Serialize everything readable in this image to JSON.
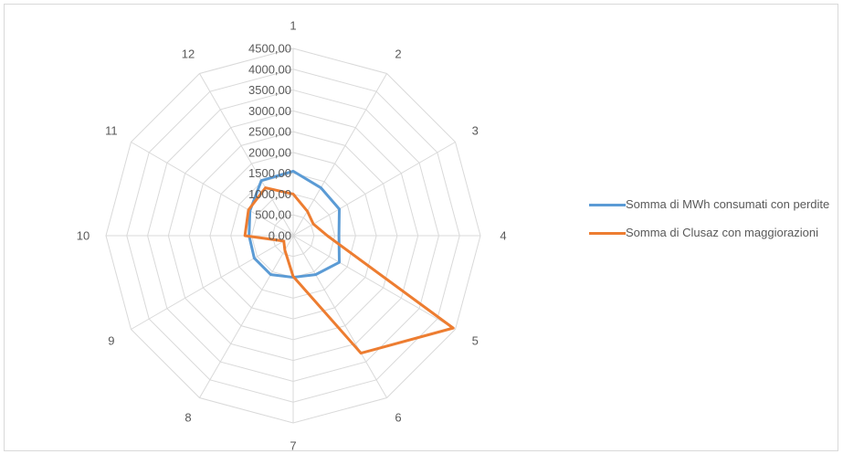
{
  "chart_data": {
    "type": "radar",
    "categories": [
      "1",
      "2",
      "3",
      "4",
      "5",
      "6",
      "7",
      "8",
      "9",
      "10",
      "11",
      "12"
    ],
    "ticks": [
      "0,00",
      "500,00",
      "1000,00",
      "1500,00",
      "2000,00",
      "2500,00",
      "3000,00",
      "3500,00",
      "4000,00",
      "4500,00"
    ],
    "rmax": 4500,
    "grid": true,
    "legend_position": "right",
    "series": [
      {
        "name": "Somma di MWh consumati con perdite",
        "color": "#5b9bd5",
        "values": [
          1550,
          1330,
          1280,
          1100,
          1280,
          1080,
          1000,
          1080,
          1080,
          1060,
          1200,
          1530
        ]
      },
      {
        "name": "Somma di Clusaz con maggiorazioni",
        "color": "#ed7d31",
        "values": [
          1000,
          680,
          560,
          820,
          4440,
          3260,
          980,
          400,
          260,
          1160,
          1240,
          1330
        ]
      }
    ]
  }
}
